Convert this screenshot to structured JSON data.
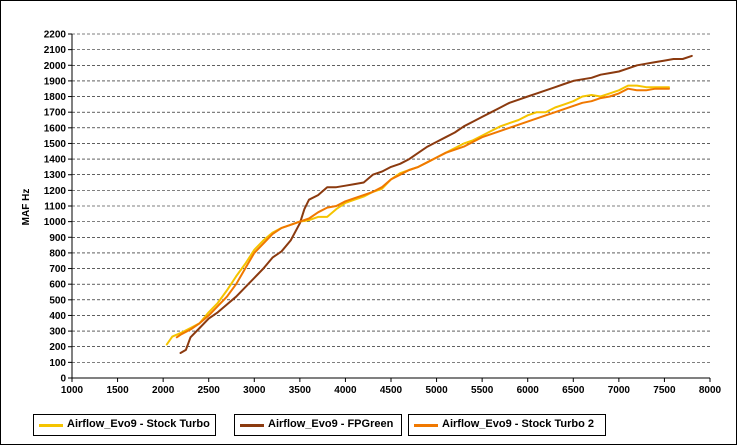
{
  "chart_data": {
    "type": "line",
    "title": "",
    "xlabel": "",
    "ylabel": "MAF Hz",
    "xlim": [
      1000,
      8000
    ],
    "ylim": [
      0,
      2200
    ],
    "x_ticks": [
      1000,
      1500,
      2000,
      2500,
      3000,
      3500,
      4000,
      4500,
      5000,
      5500,
      6000,
      6500,
      7000,
      7500,
      8000
    ],
    "y_ticks": [
      0,
      100,
      200,
      300,
      400,
      500,
      600,
      700,
      800,
      900,
      1000,
      1100,
      1200,
      1300,
      1400,
      1500,
      1600,
      1700,
      1800,
      1900,
      2000,
      2100,
      2200
    ],
    "grid": "horizontal dashed",
    "legend_position": "bottom",
    "series": [
      {
        "name": "Airflow_Evo9 - Stock Turbo",
        "color": "#f5c400",
        "points": [
          [
            2040,
            215
          ],
          [
            2100,
            265
          ],
          [
            2200,
            290
          ],
          [
            2300,
            320
          ],
          [
            2400,
            350
          ],
          [
            2500,
            420
          ],
          [
            2600,
            480
          ],
          [
            2700,
            560
          ],
          [
            2800,
            650
          ],
          [
            2900,
            730
          ],
          [
            3000,
            820
          ],
          [
            3100,
            880
          ],
          [
            3200,
            930
          ],
          [
            3300,
            960
          ],
          [
            3400,
            980
          ],
          [
            3500,
            1000
          ],
          [
            3600,
            1010
          ],
          [
            3700,
            1030
          ],
          [
            3800,
            1030
          ],
          [
            3900,
            1080
          ],
          [
            4000,
            1120
          ],
          [
            4100,
            1140
          ],
          [
            4200,
            1160
          ],
          [
            4300,
            1190
          ],
          [
            4400,
            1210
          ],
          [
            4500,
            1270
          ],
          [
            4600,
            1310
          ],
          [
            4700,
            1330
          ],
          [
            4800,
            1350
          ],
          [
            4900,
            1380
          ],
          [
            5000,
            1410
          ],
          [
            5100,
            1440
          ],
          [
            5200,
            1470
          ],
          [
            5300,
            1500
          ],
          [
            5400,
            1520
          ],
          [
            5500,
            1550
          ],
          [
            5600,
            1580
          ],
          [
            5700,
            1610
          ],
          [
            5800,
            1630
          ],
          [
            5900,
            1650
          ],
          [
            6000,
            1680
          ],
          [
            6100,
            1700
          ],
          [
            6200,
            1700
          ],
          [
            6300,
            1730
          ],
          [
            6400,
            1750
          ],
          [
            6500,
            1770
          ],
          [
            6600,
            1800
          ],
          [
            6700,
            1810
          ],
          [
            6800,
            1800
          ],
          [
            6900,
            1820
          ],
          [
            7000,
            1840
          ],
          [
            7100,
            1870
          ],
          [
            7200,
            1870
          ],
          [
            7300,
            1860
          ],
          [
            7400,
            1860
          ],
          [
            7500,
            1860
          ],
          [
            7550,
            1860
          ]
        ]
      },
      {
        "name": "Airflow_Evo9 - FPGreen",
        "color": "#8b3a0f",
        "points": [
          [
            2190,
            160
          ],
          [
            2250,
            180
          ],
          [
            2300,
            260
          ],
          [
            2400,
            320
          ],
          [
            2500,
            380
          ],
          [
            2600,
            420
          ],
          [
            2700,
            470
          ],
          [
            2800,
            520
          ],
          [
            2900,
            580
          ],
          [
            3000,
            640
          ],
          [
            3100,
            700
          ],
          [
            3200,
            770
          ],
          [
            3300,
            810
          ],
          [
            3400,
            880
          ],
          [
            3500,
            990
          ],
          [
            3550,
            1080
          ],
          [
            3600,
            1140
          ],
          [
            3700,
            1170
          ],
          [
            3800,
            1220
          ],
          [
            3900,
            1220
          ],
          [
            4000,
            1230
          ],
          [
            4100,
            1240
          ],
          [
            4200,
            1250
          ],
          [
            4300,
            1300
          ],
          [
            4400,
            1320
          ],
          [
            4500,
            1350
          ],
          [
            4600,
            1370
          ],
          [
            4700,
            1400
          ],
          [
            4800,
            1440
          ],
          [
            4900,
            1480
          ],
          [
            5000,
            1510
          ],
          [
            5100,
            1540
          ],
          [
            5200,
            1570
          ],
          [
            5300,
            1610
          ],
          [
            5400,
            1640
          ],
          [
            5500,
            1670
          ],
          [
            5600,
            1700
          ],
          [
            5700,
            1730
          ],
          [
            5800,
            1760
          ],
          [
            5900,
            1780
          ],
          [
            6000,
            1800
          ],
          [
            6100,
            1820
          ],
          [
            6200,
            1840
          ],
          [
            6300,
            1860
          ],
          [
            6400,
            1880
          ],
          [
            6500,
            1900
          ],
          [
            6600,
            1910
          ],
          [
            6700,
            1920
          ],
          [
            6800,
            1940
          ],
          [
            6900,
            1950
          ],
          [
            7000,
            1960
          ],
          [
            7100,
            1980
          ],
          [
            7200,
            2000
          ],
          [
            7300,
            2010
          ],
          [
            7400,
            2020
          ],
          [
            7500,
            2030
          ],
          [
            7600,
            2040
          ],
          [
            7700,
            2040
          ],
          [
            7800,
            2060
          ]
        ]
      },
      {
        "name": "Airflow_Evo9 - Stock Turbo 2",
        "color": "#f07800",
        "points": [
          [
            2150,
            260
          ],
          [
            2200,
            280
          ],
          [
            2300,
            310
          ],
          [
            2400,
            350
          ],
          [
            2500,
            400
          ],
          [
            2600,
            460
          ],
          [
            2700,
            520
          ],
          [
            2800,
            600
          ],
          [
            2900,
            700
          ],
          [
            3000,
            800
          ],
          [
            3100,
            860
          ],
          [
            3200,
            920
          ],
          [
            3300,
            960
          ],
          [
            3400,
            980
          ],
          [
            3500,
            1000
          ],
          [
            3600,
            1020
          ],
          [
            3700,
            1060
          ],
          [
            3800,
            1090
          ],
          [
            3900,
            1100
          ],
          [
            4000,
            1130
          ],
          [
            4100,
            1150
          ],
          [
            4200,
            1170
          ],
          [
            4300,
            1190
          ],
          [
            4400,
            1220
          ],
          [
            4500,
            1270
          ],
          [
            4600,
            1300
          ],
          [
            4700,
            1330
          ],
          [
            4800,
            1350
          ],
          [
            4900,
            1380
          ],
          [
            5000,
            1410
          ],
          [
            5100,
            1440
          ],
          [
            5200,
            1460
          ],
          [
            5300,
            1480
          ],
          [
            5400,
            1510
          ],
          [
            5500,
            1540
          ],
          [
            5600,
            1560
          ],
          [
            5700,
            1580
          ],
          [
            5800,
            1600
          ],
          [
            5900,
            1620
          ],
          [
            6000,
            1640
          ],
          [
            6100,
            1660
          ],
          [
            6200,
            1680
          ],
          [
            6300,
            1700
          ],
          [
            6400,
            1720
          ],
          [
            6500,
            1740
          ],
          [
            6600,
            1760
          ],
          [
            6700,
            1770
          ],
          [
            6800,
            1790
          ],
          [
            6900,
            1800
          ],
          [
            7000,
            1820
          ],
          [
            7100,
            1850
          ],
          [
            7200,
            1840
          ],
          [
            7300,
            1840
          ],
          [
            7400,
            1850
          ],
          [
            7500,
            1850
          ],
          [
            7550,
            1850
          ]
        ]
      }
    ]
  }
}
